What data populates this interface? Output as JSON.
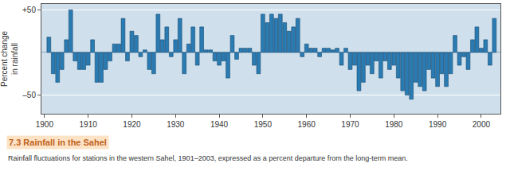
{
  "chart_data": {
    "type": "bar",
    "title": "7.3 Rainfall in the Sahel",
    "subtitle": "Rainfall fluctuations for stations in the western Sahel, 1901–2003, expressed as a percent departure from the long-term mean.",
    "y_label": "Percent change\nin rainfall",
    "x": [
      1901,
      1902,
      1903,
      1904,
      1905,
      1906,
      1907,
      1908,
      1909,
      1910,
      1911,
      1912,
      1913,
      1914,
      1915,
      1916,
      1917,
      1918,
      1919,
      1920,
      1921,
      1922,
      1923,
      1924,
      1925,
      1926,
      1927,
      1928,
      1929,
      1930,
      1931,
      1932,
      1933,
      1934,
      1935,
      1936,
      1937,
      1938,
      1939,
      1940,
      1941,
      1942,
      1943,
      1944,
      1945,
      1946,
      1947,
      1948,
      1949,
      1950,
      1951,
      1952,
      1953,
      1954,
      1955,
      1956,
      1957,
      1958,
      1959,
      1960,
      1961,
      1962,
      1963,
      1964,
      1965,
      1966,
      1967,
      1968,
      1969,
      1970,
      1971,
      1972,
      1973,
      1974,
      1975,
      1976,
      1977,
      1978,
      1979,
      1980,
      1981,
      1982,
      1983,
      1984,
      1985,
      1986,
      1987,
      1988,
      1989,
      1990,
      1991,
      1992,
      1993,
      1994,
      1995,
      1996,
      1997,
      1998,
      1999,
      2000,
      2001,
      2002,
      2003
    ],
    "values": [
      18,
      -25,
      -35,
      -20,
      15,
      50,
      -10,
      -20,
      -20,
      -15,
      15,
      -35,
      -35,
      -20,
      -10,
      10,
      10,
      40,
      -10,
      25,
      20,
      -5,
      3,
      -20,
      -25,
      45,
      15,
      30,
      -5,
      15,
      40,
      -25,
      10,
      30,
      -15,
      30,
      3,
      3,
      -10,
      -15,
      -10,
      -30,
      20,
      -8,
      5,
      5,
      5,
      -15,
      -25,
      45,
      35,
      45,
      40,
      45,
      35,
      25,
      30,
      40,
      -5,
      10,
      5,
      5,
      -5,
      5,
      5,
      3,
      5,
      -15,
      5,
      -20,
      -15,
      -45,
      -35,
      -15,
      -25,
      -10,
      -30,
      -10,
      -20,
      -15,
      -30,
      -45,
      -50,
      -55,
      -35,
      -40,
      -45,
      -20,
      -30,
      -40,
      -25,
      -40,
      -25,
      20,
      -15,
      -5,
      -20,
      15,
      30,
      5,
      15,
      -15,
      40
    ],
    "color": "#2b7bb3",
    "xlim": [
      1899.3,
      2004.4
    ],
    "xticks": [
      1900,
      1910,
      1920,
      1930,
      1940,
      1950,
      1960,
      1970,
      1980,
      1990,
      2000
    ],
    "ylim": [
      -72,
      57
    ],
    "yticks": [
      {
        "value": 50,
        "label": "+50"
      },
      {
        "value": -50,
        "label": "–50"
      }
    ],
    "grid": true
  }
}
